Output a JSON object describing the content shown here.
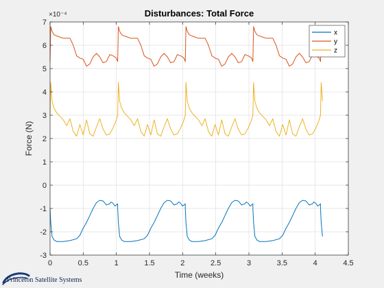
{
  "chart_data": {
    "type": "line",
    "title": "Disturbances: Total Force",
    "xlabel": "Time (weeks)",
    "ylabel": "Force (N)",
    "exponent_label": "×10⁻⁴",
    "xlim": [
      0,
      4.5
    ],
    "ylim": [
      -3,
      7
    ],
    "y_scale": 0.0001,
    "xticks": [
      0,
      0.5,
      1,
      1.5,
      2,
      2.5,
      3,
      3.5,
      4,
      4.5
    ],
    "xtick_labels": [
      "0",
      "0.5",
      "1",
      "1.5",
      "2",
      "2.5",
      "3",
      "3.5",
      "4",
      "4.5"
    ],
    "yticks": [
      -3,
      -2,
      -1,
      0,
      1,
      2,
      3,
      4,
      5,
      6,
      7
    ],
    "ytick_labels": [
      "-3",
      "-2",
      "-1",
      "0",
      "1",
      "2",
      "3",
      "4",
      "5",
      "6",
      "7"
    ],
    "grid": true,
    "legend_placement": "top-right",
    "period_weeks": 1.02,
    "series": [
      {
        "name": "x",
        "color": "#0072BD",
        "cycle_x": [
          0,
          0.01,
          0.03,
          0.06,
          0.1,
          0.2,
          0.3,
          0.4,
          0.45,
          0.5,
          0.55,
          0.6,
          0.65,
          0.7,
          0.75,
          0.8,
          0.85,
          0.9,
          0.92,
          0.95,
          0.98,
          1.0,
          1.02
        ],
        "cycle_y": [
          -1.0,
          -1.6,
          -2.2,
          -2.35,
          -2.42,
          -2.42,
          -2.38,
          -2.3,
          -2.15,
          -1.85,
          -1.6,
          -1.3,
          -1.0,
          -0.75,
          -0.65,
          -0.68,
          -0.85,
          -0.8,
          -0.72,
          -0.78,
          -0.9,
          -0.85,
          -0.8
        ]
      },
      {
        "name": "y",
        "color": "#D95319",
        "cycle_x": [
          0,
          0.01,
          0.03,
          0.06,
          0.1,
          0.15,
          0.2,
          0.3,
          0.35,
          0.4,
          0.45,
          0.5,
          0.55,
          0.6,
          0.65,
          0.7,
          0.75,
          0.8,
          0.85,
          0.9,
          0.95,
          1.0,
          1.02
        ],
        "cycle_y": [
          5.3,
          6.8,
          6.6,
          6.45,
          6.4,
          6.35,
          6.3,
          6.3,
          6.0,
          5.55,
          5.45,
          5.4,
          5.1,
          5.2,
          5.5,
          5.65,
          5.5,
          5.25,
          5.3,
          5.6,
          5.55,
          5.45,
          5.3
        ]
      },
      {
        "name": "z",
        "color": "#EDB120",
        "cycle_x": [
          0,
          0.01,
          0.03,
          0.06,
          0.1,
          0.15,
          0.2,
          0.25,
          0.3,
          0.35,
          0.4,
          0.45,
          0.5,
          0.55,
          0.6,
          0.65,
          0.7,
          0.75,
          0.8,
          0.85,
          0.9,
          0.95,
          1.0,
          1.02
        ],
        "cycle_y": [
          3.0,
          4.4,
          3.6,
          3.3,
          3.1,
          2.95,
          2.8,
          2.55,
          2.85,
          2.3,
          2.1,
          2.6,
          2.15,
          2.8,
          2.2,
          2.1,
          2.5,
          2.85,
          2.4,
          2.15,
          2.2,
          2.45,
          2.8,
          3.0
        ]
      }
    ]
  },
  "logo": {
    "text": "Princeton Satellite Systems"
  }
}
